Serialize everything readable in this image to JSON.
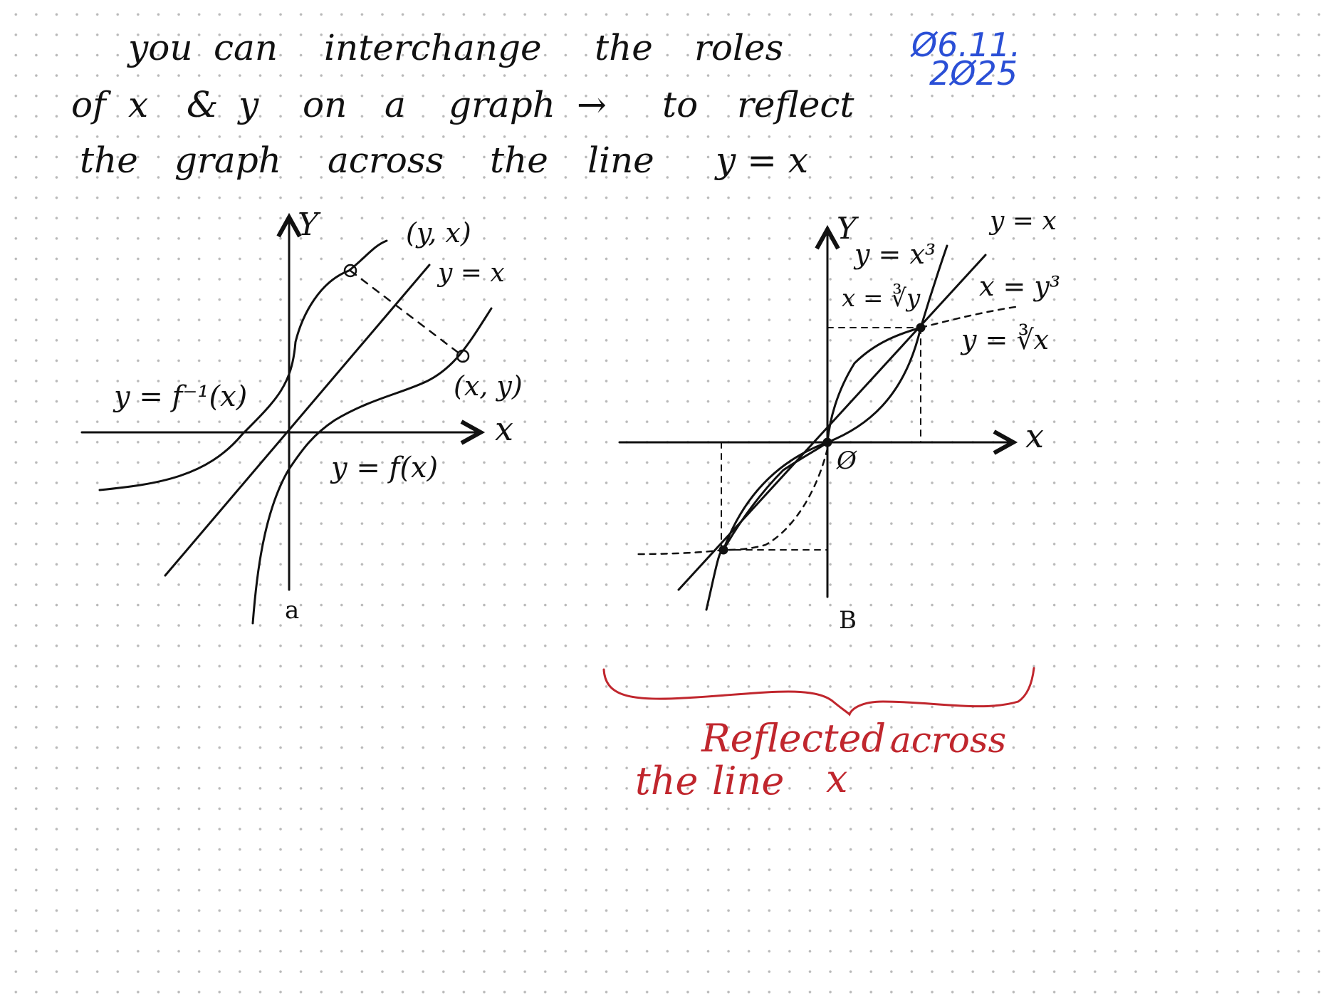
{
  "heading": {
    "line1": [
      "you",
      "can",
      "interchange",
      "the",
      "roles"
    ],
    "line2": [
      "of",
      "x",
      "&",
      "y",
      "on",
      "a",
      "graph",
      "→",
      "to",
      "reflect"
    ],
    "line3": [
      "the",
      "graph",
      "across",
      "the",
      "line",
      "y = x"
    ]
  },
  "date": {
    "line1": "Ø6.11.",
    "line2": "2Ø25"
  },
  "graph_a": {
    "caption": "a",
    "axis_x": "x",
    "axis_y": "Y",
    "label_yx_point": "(y, x)",
    "label_xy_point": "(x, y)",
    "label_identity": "y = x",
    "label_inverse": "y = f⁻¹(x)",
    "label_function": "y = f(x)"
  },
  "graph_b": {
    "caption": "B",
    "axis_x": "x",
    "axis_y": "Y",
    "origin": "Ø",
    "label_identity": "y = x",
    "label_cube": "y = x³",
    "label_cuberoot_y": "x = ∛y",
    "label_x_eq_y_cubed": "x = y³",
    "label_y_cuberoot": "y = ∛x"
  },
  "annotation": {
    "line1_a": "Reflected",
    "line1_b": "across",
    "line2_a": "the",
    "line2_b": "line",
    "line2_c": "x"
  },
  "colors": {
    "ink": "#111111",
    "date_blue": "#2a4fd6",
    "annotation_red": "#c0262d"
  }
}
